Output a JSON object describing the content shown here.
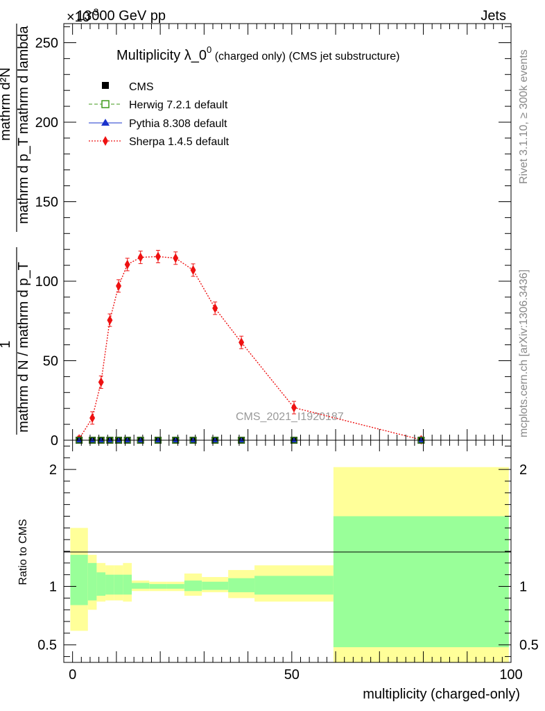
{
  "header": {
    "energy": "13000 GeV pp",
    "process": "Jets",
    "exponent_label": "×10",
    "exponent_power": "-3"
  },
  "side_labels": {
    "rivet": "Rivet 3.1.10, ≥ 300k events",
    "source": "mcplots.cern.ch [arXiv:1306.3436]"
  },
  "watermark": "CMS_2021_I1920187",
  "axes": {
    "ylabel_main_num": "mathrm d²N",
    "ylabel_main_den": "mathrm d p_T mathrm d lambda",
    "ylabel_prefix_num": "1",
    "ylabel_prefix_den": "mathrm d N / mathrm d p_T",
    "ylabel_ratio": "Ratio to CMS",
    "xlabel": "multiplicity (charged-only)"
  },
  "colors": {
    "cms": "#000000",
    "herwig": "#3f9a1a",
    "pythia": "#1a33cc",
    "sherpa": "#ee1111",
    "band_inner": "#99ff99",
    "band_outer": "#ffff99"
  },
  "chart_data": {
    "type": "line",
    "title": "Multiplicity λ_0⁰ (charged only) (CMS jet substructure)",
    "title_main": "Multiplicity λ_0",
    "title_sup": "0",
    "title_rest": " (charged only) (CMS jet substructure)",
    "xlim": [
      -2,
      100
    ],
    "ylim": [
      0,
      262
    ],
    "x_ticks": [
      0,
      50,
      100
    ],
    "y_ticks": [
      0,
      50,
      100,
      150,
      200,
      250
    ],
    "ratio_ylim": [
      0.35,
      2.25
    ],
    "ratio_ticks": [
      0.5,
      1,
      2
    ],
    "x": [
      1.5,
      4.5,
      6.5,
      8.5,
      10.5,
      12.5,
      15.5,
      19.5,
      23.5,
      27.5,
      32.5,
      38.5,
      50.5,
      79.5
    ],
    "legend": [
      "CMS",
      "Herwig 7.2.1 default",
      "Pythia 8.308 default",
      "Sherpa 1.4.5 default"
    ],
    "series": [
      {
        "name": "CMS",
        "values": [
          0,
          0,
          0,
          0,
          0,
          0,
          0,
          0,
          0,
          0,
          0,
          0,
          0,
          0
        ]
      },
      {
        "name": "Herwig 7.2.1 default",
        "values": [
          0,
          0,
          0,
          0,
          0,
          0,
          0,
          0,
          0,
          0,
          0,
          0,
          0,
          0
        ]
      },
      {
        "name": "Pythia 8.308 default",
        "values": [
          0,
          0,
          0,
          0,
          0,
          0,
          0,
          0,
          0,
          0,
          0,
          0,
          0,
          0
        ]
      },
      {
        "name": "Sherpa 1.4.5 default",
        "values": [
          0.8,
          14,
          36.5,
          75.5,
          97,
          110.5,
          115,
          115.5,
          114.5,
          107,
          83,
          61.5,
          20.5,
          0.3
        ]
      }
    ],
    "ratio_bands": [
      {
        "x0": -0.5,
        "x1": 3.5,
        "inner": [
          0.84,
          1.27
        ],
        "outer": [
          0.62,
          1.5
        ]
      },
      {
        "x0": 3.5,
        "x1": 5.5,
        "inner": [
          0.88,
          1.2
        ],
        "outer": [
          0.8,
          1.27
        ]
      },
      {
        "x0": 5.5,
        "x1": 7.5,
        "inner": [
          0.92,
          1.12
        ],
        "outer": [
          0.87,
          1.2
        ]
      },
      {
        "x0": 7.5,
        "x1": 9.5,
        "inner": [
          0.93,
          1.1
        ],
        "outer": [
          0.88,
          1.18
        ]
      },
      {
        "x0": 9.5,
        "x1": 11.5,
        "inner": [
          0.93,
          1.1
        ],
        "outer": [
          0.88,
          1.18
        ]
      },
      {
        "x0": 11.5,
        "x1": 13.5,
        "inner": [
          0.93,
          1.1
        ],
        "outer": [
          0.87,
          1.2
        ]
      },
      {
        "x0": 13.5,
        "x1": 17.5,
        "inner": [
          0.98,
          1.03
        ],
        "outer": [
          0.96,
          1.05
        ]
      },
      {
        "x0": 17.5,
        "x1": 21.5,
        "inner": [
          0.98,
          1.02
        ],
        "outer": [
          0.96,
          1.04
        ]
      },
      {
        "x0": 21.5,
        "x1": 25.5,
        "inner": [
          0.98,
          1.02
        ],
        "outer": [
          0.96,
          1.04
        ]
      },
      {
        "x0": 25.5,
        "x1": 29.5,
        "inner": [
          0.96,
          1.05
        ],
        "outer": [
          0.92,
          1.11
        ]
      },
      {
        "x0": 29.5,
        "x1": 35.5,
        "inner": [
          0.97,
          1.04
        ],
        "outer": [
          0.95,
          1.08
        ]
      },
      {
        "x0": 35.5,
        "x1": 41.5,
        "inner": [
          0.95,
          1.07
        ],
        "outer": [
          0.9,
          1.14
        ]
      },
      {
        "x0": 41.5,
        "x1": 59.5,
        "inner": [
          0.93,
          1.09
        ],
        "outer": [
          0.87,
          1.18
        ]
      },
      {
        "x0": 59.5,
        "x1": 99.5,
        "inner": [
          0.48,
          1.6
        ],
        "outer": [
          0.35,
          2.02
        ]
      }
    ]
  }
}
